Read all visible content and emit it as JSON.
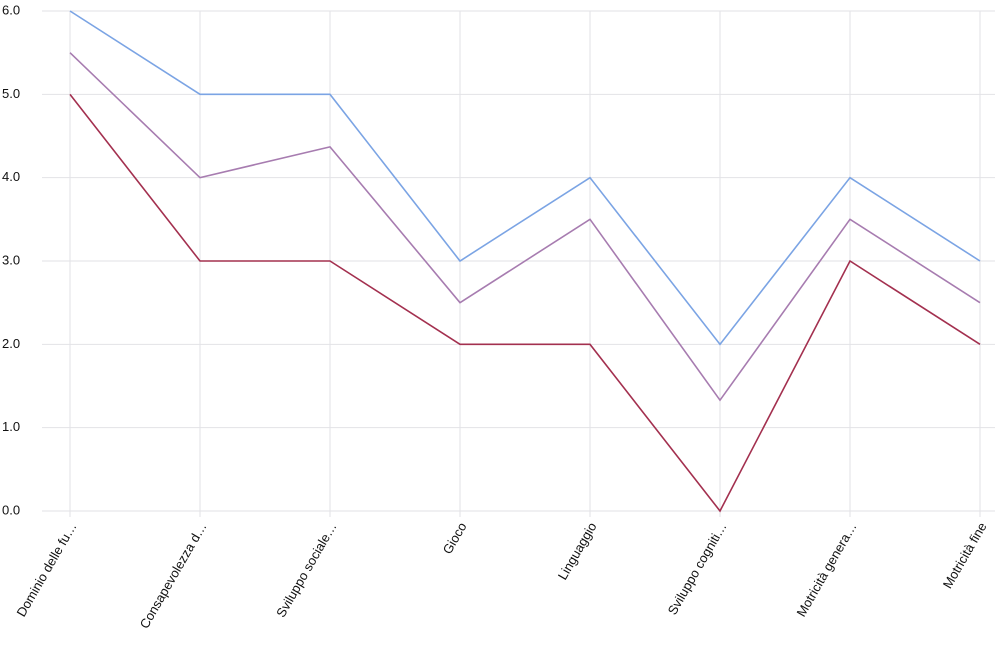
{
  "chart_data": {
    "type": "line",
    "categories": [
      "Dominio delle fu…",
      "Consapevolezza d…",
      "Sviluppo sociale…",
      "Gioco",
      "Linguaggio",
      "Sviluppo cogniti…",
      "Motricità genera…",
      "Motricità fine"
    ],
    "series": [
      {
        "color": "#7ba4e4",
        "values": [
          6,
          5,
          5,
          3,
          4,
          2,
          4,
          3
        ]
      },
      {
        "color": "#a77cb0",
        "values": [
          5.5,
          4,
          4.37,
          2.5,
          3.5,
          1.33,
          3.5,
          2.5
        ]
      },
      {
        "color": "#a3304f",
        "values": [
          5,
          3,
          3,
          2,
          2,
          0,
          3,
          2
        ]
      }
    ],
    "ylim": [
      0,
      6
    ],
    "yticks": [
      {
        "value": 0,
        "label": "0.0"
      },
      {
        "value": 1,
        "label": "1.0"
      },
      {
        "value": 2,
        "label": "2.0"
      },
      {
        "value": 3,
        "label": "3.0"
      },
      {
        "value": 4,
        "label": "4.0"
      },
      {
        "value": 5,
        "label": "5.0"
      },
      {
        "value": 6,
        "label": "6.0"
      }
    ],
    "grid": true
  }
}
